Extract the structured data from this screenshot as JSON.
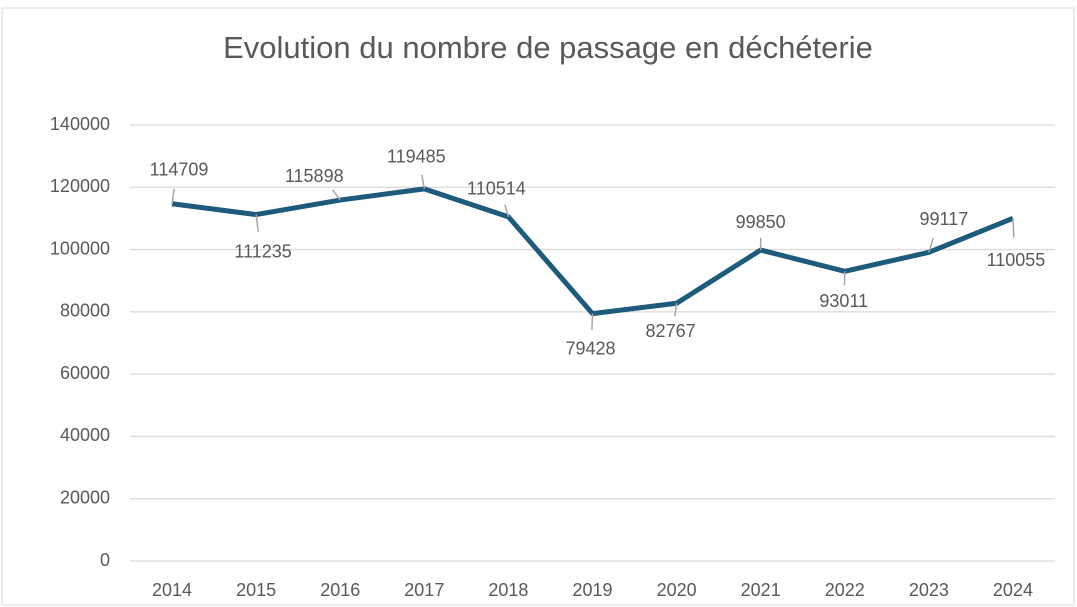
{
  "chart_data": {
    "type": "line",
    "title": "Evolution du nombre de passage en déchéterie",
    "categories": [
      "2014",
      "2015",
      "2016",
      "2017",
      "2018",
      "2019",
      "2020",
      "2021",
      "2022",
      "2023",
      "2024"
    ],
    "values": [
      114709,
      111235,
      115898,
      119485,
      110514,
      79428,
      82767,
      99850,
      93011,
      99117,
      110055
    ],
    "color": "#1d5b7c",
    "ylim": [
      0,
      140000
    ],
    "yticks": [
      0,
      20000,
      40000,
      60000,
      80000,
      100000,
      120000,
      140000
    ],
    "grid": true
  }
}
